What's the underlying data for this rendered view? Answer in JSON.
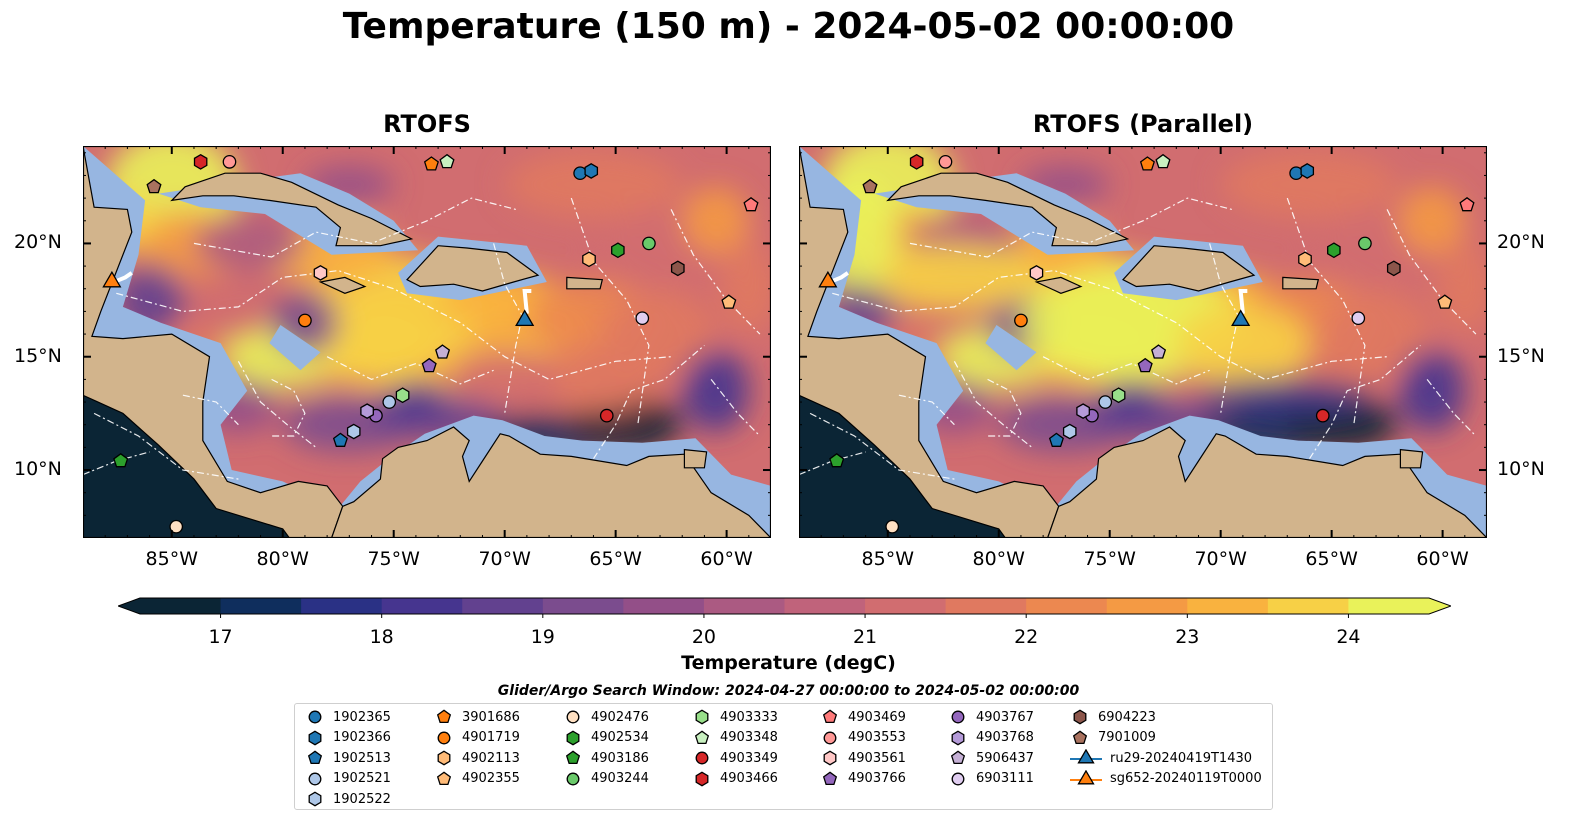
{
  "title": "Temperature (150 m) - 2024-05-02 00:00:00",
  "panels": [
    {
      "title": "RTOFS"
    },
    {
      "title": "RTOFS (Parallel)"
    }
  ],
  "map_extent": {
    "lon": [
      -89,
      -58
    ],
    "lat": [
      7,
      24.3
    ]
  },
  "x_ticks": [
    "85°W",
    "80°W",
    "75°W",
    "70°W",
    "65°W",
    "60°W"
  ],
  "x_tick_lons": [
    -85,
    -80,
    -75,
    -70,
    -65,
    -60
  ],
  "y_ticks": [
    "20°N",
    "15°N",
    "10°N"
  ],
  "y_tick_lats": [
    20,
    15,
    10
  ],
  "colorbar": {
    "label": "Temperature (degC)",
    "ticks": [
      "17",
      "18",
      "19",
      "20",
      "21",
      "22",
      "23",
      "24"
    ],
    "range": [
      16.5,
      24.5
    ],
    "colors": [
      "#0b2535",
      "#0f2e5d",
      "#2a3185",
      "#46358f",
      "#62418f",
      "#7b4c8e",
      "#934f88",
      "#ab5a82",
      "#c0637b",
      "#d16d70",
      "#e07960",
      "#ec8850",
      "#f49a44",
      "#f9b23f",
      "#f7d046",
      "#e9f25a"
    ]
  },
  "search_window": "Glider/Argo Search Window: 2024-04-27 00:00:00 to 2024-05-02 00:00:00",
  "legend": [
    {
      "label": "1902365",
      "shape": "circle",
      "color": "#1f77b4"
    },
    {
      "label": "1902366",
      "shape": "hexagon",
      "color": "#1f77b4"
    },
    {
      "label": "1902513",
      "shape": "pentagon",
      "color": "#1f77b4"
    },
    {
      "label": "1902521",
      "shape": "circle",
      "color": "#aec7e8"
    },
    {
      "label": "1902522",
      "shape": "hexagon",
      "color": "#aec7e8"
    },
    {
      "label": "3901686",
      "shape": "pentagon",
      "color": "#ff7f0e"
    },
    {
      "label": "4901719",
      "shape": "circle",
      "color": "#ff7f0e"
    },
    {
      "label": "4902113",
      "shape": "hexagon",
      "color": "#ffbb78"
    },
    {
      "label": "4902355",
      "shape": "pentagon",
      "color": "#ffbb78"
    },
    {
      "label": "4902476",
      "shape": "circle",
      "color": "#ffe0c2"
    },
    {
      "label": "4902534",
      "shape": "hexagon",
      "color": "#2ca02c"
    },
    {
      "label": "4903186",
      "shape": "pentagon",
      "color": "#2ca02c"
    },
    {
      "label": "4903244",
      "shape": "circle",
      "color": "#6ac96a"
    },
    {
      "label": "4903333",
      "shape": "hexagon",
      "color": "#98df8a"
    },
    {
      "label": "4903348",
      "shape": "pentagon",
      "color": "#c8f0c0"
    },
    {
      "label": "4903349",
      "shape": "circle",
      "color": "#d62728"
    },
    {
      "label": "4903466",
      "shape": "hexagon",
      "color": "#d62728"
    },
    {
      "label": "4903469",
      "shape": "pentagon",
      "color": "#ff7a7a"
    },
    {
      "label": "4903553",
      "shape": "circle",
      "color": "#ff9896"
    },
    {
      "label": "4903561",
      "shape": "hexagon",
      "color": "#ffc7c6"
    },
    {
      "label": "4903766",
      "shape": "pentagon",
      "color": "#9467bd"
    },
    {
      "label": "4903767",
      "shape": "circle",
      "color": "#9467bd"
    },
    {
      "label": "4903768",
      "shape": "hexagon",
      "color": "#b49ad8"
    },
    {
      "label": "5906437",
      "shape": "pentagon",
      "color": "#c5b0d5"
    },
    {
      "label": "6903111",
      "shape": "circle",
      "color": "#e0cdf0"
    },
    {
      "label": "6904223",
      "shape": "hexagon",
      "color": "#8c564b"
    },
    {
      "label": "7901009",
      "shape": "pentagon",
      "color": "#a9725f"
    },
    {
      "label": "ru29-20240419T1430",
      "shape": "triangle",
      "color": "#1f77b4"
    },
    {
      "label": "sg652-20240119T0000",
      "shape": "triangle",
      "color": "#ff7f0e"
    }
  ],
  "markers": [
    {
      "id": "1902365",
      "lon": -66.6,
      "lat": 23.1
    },
    {
      "id": "1902366",
      "lon": -66.1,
      "lat": 23.2
    },
    {
      "id": "1902513",
      "lon": -77.4,
      "lat": 11.3
    },
    {
      "id": "1902521",
      "lon": -75.2,
      "lat": 13.0
    },
    {
      "id": "1902522",
      "lon": -76.8,
      "lat": 11.7
    },
    {
      "id": "3901686",
      "lon": -73.3,
      "lat": 23.5
    },
    {
      "id": "4901719",
      "lon": -79.0,
      "lat": 16.6
    },
    {
      "id": "4902113",
      "lon": -66.2,
      "lat": 19.3
    },
    {
      "id": "4902355",
      "lon": -59.9,
      "lat": 17.4
    },
    {
      "id": "4902476",
      "lon": -84.8,
      "lat": 7.5
    },
    {
      "id": "4902534",
      "lon": -64.9,
      "lat": 19.7
    },
    {
      "id": "4903186",
      "lon": -87.3,
      "lat": 10.4
    },
    {
      "id": "4903244",
      "lon": -63.5,
      "lat": 20.0
    },
    {
      "id": "4903333",
      "lon": -74.6,
      "lat": 13.3
    },
    {
      "id": "4903348",
      "lon": -72.6,
      "lat": 23.6
    },
    {
      "id": "4903349",
      "lon": -65.4,
      "lat": 12.4
    },
    {
      "id": "4903466",
      "lon": -83.7,
      "lat": 23.6
    },
    {
      "id": "4903469",
      "lon": -58.9,
      "lat": 21.7
    },
    {
      "id": "4903553",
      "lon": -82.4,
      "lat": 23.6
    },
    {
      "id": "4903561",
      "lon": -78.3,
      "lat": 18.7
    },
    {
      "id": "4903766",
      "lon": -73.4,
      "lat": 14.6
    },
    {
      "id": "4903767",
      "lon": -75.8,
      "lat": 12.4
    },
    {
      "id": "4903768",
      "lon": -76.2,
      "lat": 12.6
    },
    {
      "id": "5906437",
      "lon": -72.8,
      "lat": 15.2
    },
    {
      "id": "6903111",
      "lon": -63.8,
      "lat": 16.7
    },
    {
      "id": "6904223",
      "lon": -62.2,
      "lat": 18.9
    },
    {
      "id": "7901009",
      "lon": -85.8,
      "lat": 22.5
    },
    {
      "id": "ru29-20240419T1430",
      "lon": -69.1,
      "lat": 16.6
    },
    {
      "id": "sg652-20240119T0000",
      "lon": -87.7,
      "lat": 18.3
    }
  ]
}
